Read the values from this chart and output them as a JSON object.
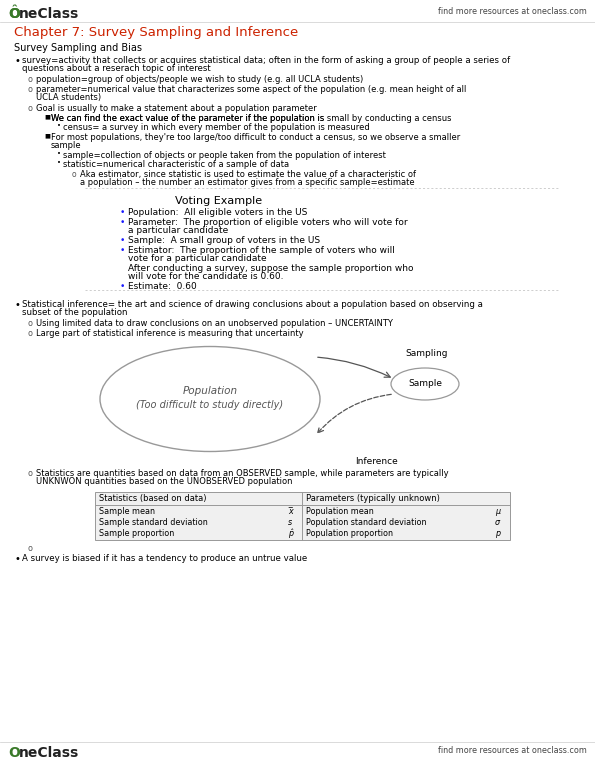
{
  "title": "Chapter 7: Survey Sampling and Inference",
  "find_more": "find more resources at oneclass.com",
  "bg_color": "#ffffff",
  "title_color": "#cc2200",
  "text_color": "#000000",
  "section_header": "Survey Sampling and Bias",
  "table_headers": [
    "Statistics (based on data)",
    "Parameters (typically unknown)"
  ],
  "table_rows": [
    [
      "Sample mean",
      "x̅",
      "Population mean",
      "μ"
    ],
    [
      "Sample standard deviation",
      "s",
      "Population standard deviation",
      "σ"
    ],
    [
      "Sample proportion",
      "p̂",
      "Population proportion",
      "p"
    ]
  ],
  "diagram_population": "Population\n(Too difficult to study directly)",
  "diagram_sample": "Sample",
  "diagram_sampling": "Sampling",
  "diagram_inference": "Inference",
  "logo_color": "#3a7a2a",
  "logo_text_color": "#222222",
  "header_line_color": "#cccccc",
  "bullet_color": "#000000",
  "sub_o_color": "#555555",
  "blue_bullet": "#1a1aff",
  "diagram_text_color": "#555555",
  "diagram_edge_color": "#999999"
}
